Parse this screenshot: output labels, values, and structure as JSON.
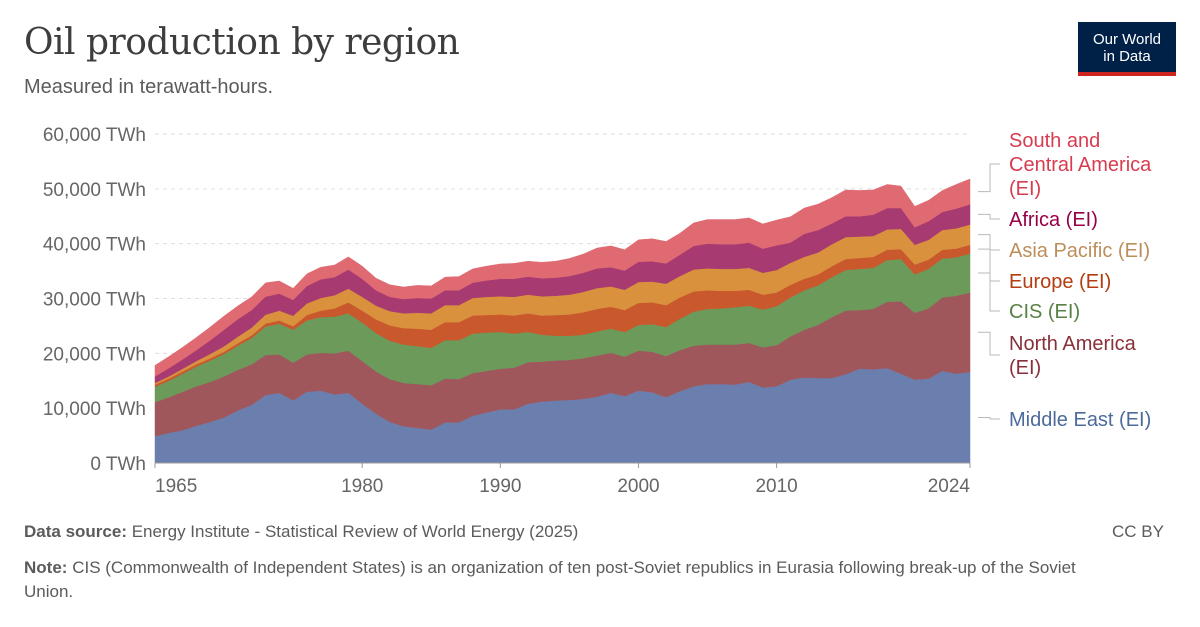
{
  "header": {
    "title": "Oil production by region",
    "subtitle": "Measured in terawatt-hours.",
    "logo_line1": "Our World",
    "logo_line2": "in Data"
  },
  "footer": {
    "source_label": "Data source:",
    "source_text": "Energy Institute - Statistical Review of World Energy (2025)",
    "license": "CC BY",
    "note_label": "Note:",
    "note_text": "CIS (Commonwealth of Independent States) is an organization of ten post-Soviet republics in Eurasia following break-up of the Soviet Union."
  },
  "chart_data": {
    "type": "area",
    "stacked": true,
    "title": "Oil production by region",
    "subtitle": "Measured in terawatt-hours.",
    "unit": "TWh",
    "x": [
      1965,
      1966,
      1967,
      1968,
      1969,
      1970,
      1971,
      1972,
      1973,
      1974,
      1975,
      1976,
      1977,
      1978,
      1979,
      1980,
      1981,
      1982,
      1983,
      1984,
      1985,
      1986,
      1987,
      1988,
      1989,
      1990,
      1991,
      1992,
      1993,
      1994,
      1995,
      1996,
      1997,
      1998,
      1999,
      2000,
      2001,
      2002,
      2003,
      2004,
      2005,
      2006,
      2007,
      2008,
      2009,
      2010,
      2011,
      2012,
      2013,
      2014,
      2015,
      2016,
      2017,
      2018,
      2019,
      2020,
      2021,
      2022,
      2023,
      2024
    ],
    "x_ticks": [
      1965,
      1980,
      1990,
      2000,
      2010,
      2024
    ],
    "ylim": [
      0,
      60000
    ],
    "y_ticks": [
      0,
      10000,
      20000,
      30000,
      40000,
      50000,
      60000
    ],
    "y_tick_labels": [
      "0 TWh",
      "10,000 TWh",
      "20,000 TWh",
      "30,000 TWh",
      "40,000 TWh",
      "50,000 TWh",
      "60,000 TWh"
    ],
    "grid": true,
    "legend": "right, labels at series ends",
    "series": [
      {
        "name": "Middle East (EI)",
        "color": "#6b7fae",
        "label_color": "#4c6a9c",
        "values": [
          4900,
          5500,
          6000,
          6800,
          7500,
          8300,
          9600,
          10600,
          12400,
          12800,
          11400,
          13000,
          13200,
          12500,
          12800,
          10800,
          9000,
          7500,
          6700,
          6400,
          6100,
          7400,
          7400,
          8600,
          9200,
          9800,
          9800,
          10800,
          11200,
          11400,
          11500,
          11700,
          12100,
          12800,
          12200,
          13200,
          12900,
          12000,
          13100,
          14000,
          14400,
          14400,
          14300,
          14800,
          13800,
          14000,
          15200,
          15600,
          15500,
          15500,
          16200,
          17200,
          17100,
          17300,
          16300,
          15200,
          15400,
          16800,
          16300,
          16600
        ]
      },
      {
        "name": "North America (EI)",
        "color": "#a0575c",
        "label_color": "#883039",
        "values": [
          6200,
          6500,
          7000,
          7200,
          7300,
          7500,
          7400,
          7400,
          7300,
          7000,
          6900,
          6800,
          6900,
          7500,
          7700,
          7800,
          7700,
          7800,
          7900,
          8000,
          8100,
          8000,
          7900,
          7800,
          7600,
          7400,
          7600,
          7600,
          7300,
          7300,
          7300,
          7400,
          7500,
          7300,
          7200,
          7300,
          7400,
          7500,
          7500,
          7400,
          7200,
          7200,
          7300,
          7100,
          7300,
          7500,
          7900,
          8700,
          9700,
          11100,
          11600,
          10700,
          11000,
          12100,
          13200,
          12200,
          12800,
          13400,
          14200,
          14500
        ]
      },
      {
        "name": "CIS (EI)",
        "color": "#6b9a5b",
        "label_color": "#578145",
        "values": [
          2800,
          3000,
          3300,
          3600,
          3900,
          4100,
          4400,
          4800,
          5200,
          5600,
          6000,
          6200,
          6500,
          6700,
          6800,
          7000,
          7000,
          7000,
          7000,
          6900,
          6800,
          7000,
          7100,
          7200,
          7000,
          6700,
          6200,
          5500,
          4900,
          4500,
          4400,
          4300,
          4400,
          4400,
          4500,
          4700,
          5000,
          5300,
          5700,
          6200,
          6500,
          6600,
          6800,
          6800,
          6900,
          7100,
          7100,
          7200,
          7200,
          7300,
          7400,
          7500,
          7500,
          7600,
          7700,
          7000,
          7200,
          7100,
          7000,
          7100
        ]
      },
      {
        "name": "Europe (EI)",
        "color": "#c9592d",
        "label_color": "#b33d11",
        "values": [
          400,
          400,
          400,
          400,
          400,
          400,
          450,
          500,
          550,
          600,
          650,
          1000,
          1200,
          1500,
          2000,
          2200,
          2500,
          2800,
          3000,
          3200,
          3300,
          3300,
          3300,
          3300,
          3200,
          3200,
          3300,
          3400,
          3500,
          3800,
          3900,
          4100,
          4100,
          4000,
          4000,
          4000,
          4000,
          4000,
          3900,
          3700,
          3400,
          3200,
          3000,
          2900,
          2700,
          2500,
          2300,
          2100,
          2000,
          2000,
          2000,
          2000,
          2000,
          1900,
          1800,
          1800,
          1700,
          1600,
          1600,
          1600
        ]
      },
      {
        "name": "Asia Pacific (EI)",
        "color": "#d9913d",
        "label_color": "#bc8e5a",
        "values": [
          300,
          400,
          500,
          600,
          800,
          1000,
          1200,
          1400,
          1600,
          1800,
          1900,
          2100,
          2300,
          2400,
          2500,
          2500,
          2500,
          2600,
          2700,
          2900,
          3000,
          3100,
          3100,
          3200,
          3300,
          3300,
          3400,
          3400,
          3500,
          3500,
          3600,
          3700,
          3800,
          3700,
          3700,
          3800,
          3800,
          3900,
          3900,
          4000,
          4000,
          4000,
          4000,
          4000,
          4000,
          4100,
          4000,
          4000,
          4000,
          4000,
          4000,
          3900,
          3800,
          3700,
          3700,
          3600,
          3600,
          3600,
          3700,
          3700
        ]
      },
      {
        "name": "Africa (EI)",
        "color": "#a83a72",
        "label_color": "#970046",
        "values": [
          1200,
          1500,
          1700,
          2000,
          2500,
          3000,
          3200,
          3200,
          3300,
          3100,
          2900,
          3200,
          3400,
          3300,
          3500,
          3300,
          2800,
          2600,
          2600,
          2700,
          2700,
          2700,
          2700,
          2800,
          3000,
          3200,
          3300,
          3300,
          3300,
          3300,
          3400,
          3500,
          3600,
          3500,
          3500,
          3700,
          3700,
          3700,
          3900,
          4300,
          4500,
          4500,
          4500,
          4600,
          4400,
          4500,
          3700,
          4200,
          4100,
          3800,
          3800,
          3700,
          3900,
          3900,
          3800,
          3200,
          3400,
          3300,
          3600,
          3700
        ]
      },
      {
        "name": "South and Central America (EI)",
        "color": "#e06a72",
        "label_color": "#d73c50",
        "values": [
          2000,
          2100,
          2200,
          2300,
          2400,
          2500,
          2400,
          2400,
          2500,
          2300,
          2100,
          2200,
          2200,
          2200,
          2300,
          2300,
          2200,
          2200,
          2200,
          2300,
          2300,
          2400,
          2500,
          2500,
          2600,
          2700,
          2800,
          2800,
          2900,
          3000,
          3200,
          3400,
          3700,
          3900,
          3800,
          4000,
          4100,
          4000,
          3900,
          4200,
          4400,
          4500,
          4500,
          4500,
          4500,
          4600,
          4700,
          4700,
          4700,
          4700,
          4800,
          4700,
          4500,
          4300,
          4000,
          3800,
          3800,
          3900,
          4400,
          4600
        ]
      }
    ]
  }
}
